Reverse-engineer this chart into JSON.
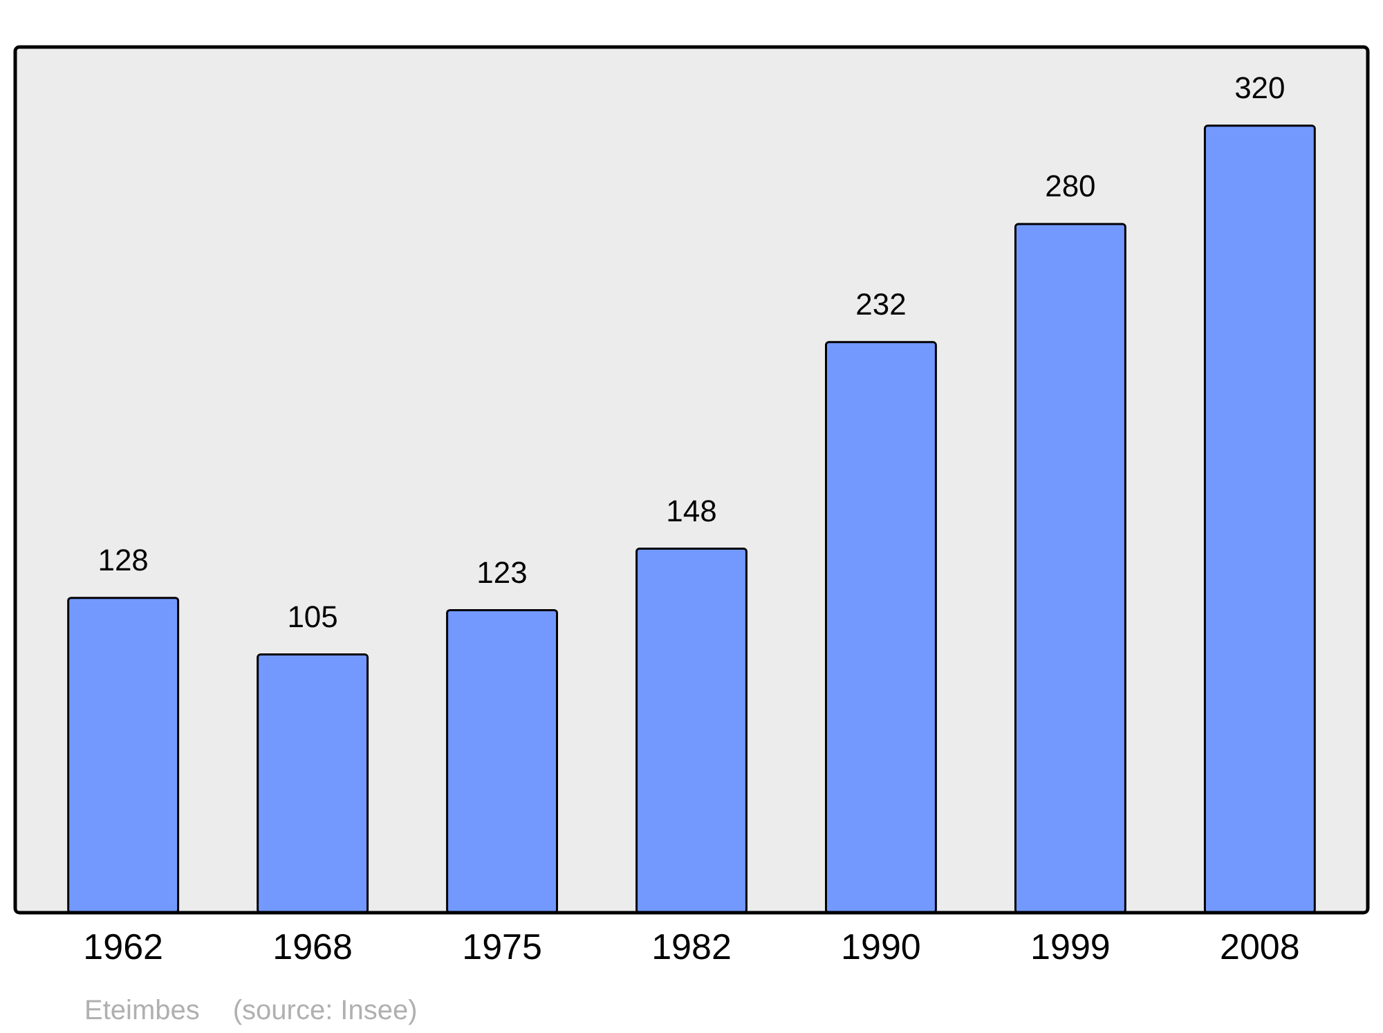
{
  "chart_data": {
    "type": "bar",
    "categories": [
      "1962",
      "1968",
      "1975",
      "1982",
      "1990",
      "1999",
      "2008"
    ],
    "values": [
      128,
      105,
      123,
      148,
      232,
      280,
      320
    ],
    "color": "#7399ff",
    "ylim": [
      0,
      352
    ],
    "data_labels": true,
    "tick_labels": "x",
    "annotations": [
      "Eteimbes",
      "(source: Insee)"
    ]
  }
}
